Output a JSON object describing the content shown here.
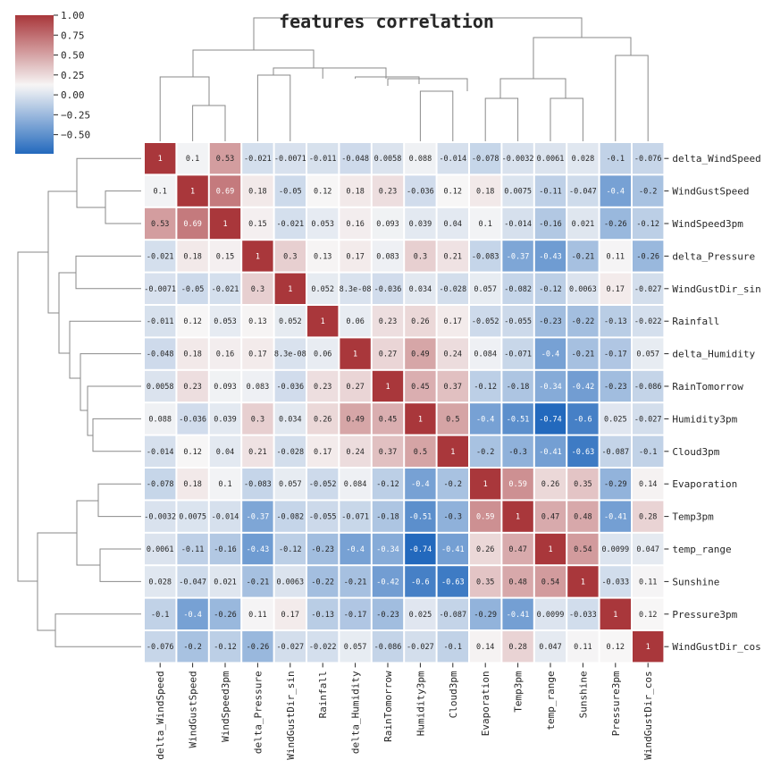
{
  "chart_data": {
    "type": "heatmap",
    "title": "features correlation",
    "row_labels": [
      "delta_WindSpeed",
      "WindGustSpeed",
      "WindSpeed3pm",
      "delta_Pressure",
      "WindGustDir_sin",
      "Rainfall",
      "delta_Humidity",
      "RainTomorrow",
      "Humidity3pm",
      "Cloud3pm",
      "Evaporation",
      "Temp3pm",
      "temp_range",
      "Sunshine",
      "Pressure3pm",
      "WindGustDir_cos"
    ],
    "col_labels": [
      "delta_WindSpeed",
      "WindGustSpeed",
      "WindSpeed3pm",
      "delta_Pressure",
      "WindGustDir_sin",
      "Rainfall",
      "delta_Humidity",
      "RainTomorrow",
      "Humidity3pm",
      "Cloud3pm",
      "Evaporation",
      "Temp3pm",
      "temp_range",
      "Sunshine",
      "Pressure3pm",
      "WindGustDir_cos"
    ],
    "values": [
      [
        1,
        0.1,
        0.53,
        -0.021,
        -0.0071,
        -0.011,
        -0.048,
        0.0058,
        0.088,
        -0.014,
        -0.078,
        -0.0032,
        0.0061,
        0.028,
        -0.1,
        -0.076
      ],
      [
        0.1,
        1,
        0.69,
        0.18,
        -0.05,
        0.12,
        0.18,
        0.23,
        -0.036,
        0.12,
        0.18,
        0.0075,
        -0.11,
        -0.047,
        -0.4,
        -0.2
      ],
      [
        0.53,
        0.69,
        1,
        0.15,
        -0.021,
        0.053,
        0.16,
        0.093,
        0.039,
        0.04,
        0.1,
        -0.014,
        -0.16,
        0.021,
        -0.26,
        -0.12
      ],
      [
        -0.021,
        0.18,
        0.15,
        1,
        0.3,
        0.13,
        0.17,
        0.083,
        0.3,
        0.21,
        -0.083,
        -0.37,
        -0.43,
        -0.21,
        0.11,
        -0.26
      ],
      [
        -0.0071,
        -0.05,
        -0.021,
        0.3,
        1,
        0.052,
        8.3e-08,
        -0.036,
        0.034,
        -0.028,
        0.057,
        -0.082,
        -0.12,
        0.0063,
        0.17,
        -0.027
      ],
      [
        -0.011,
        0.12,
        0.053,
        0.13,
        0.052,
        1,
        0.06,
        0.23,
        0.26,
        0.17,
        -0.052,
        -0.055,
        -0.23,
        -0.22,
        -0.13,
        -0.022
      ],
      [
        -0.048,
        0.18,
        0.16,
        0.17,
        8.3e-08,
        0.06,
        1,
        0.27,
        0.49,
        0.24,
        0.084,
        -0.071,
        -0.4,
        -0.21,
        -0.17,
        0.057
      ],
      [
        0.0058,
        0.23,
        0.093,
        0.083,
        -0.036,
        0.23,
        0.27,
        1,
        0.45,
        0.37,
        -0.12,
        -0.18,
        -0.34,
        -0.42,
        -0.23,
        -0.086
      ],
      [
        0.088,
        -0.036,
        0.039,
        0.3,
        0.034,
        0.26,
        0.49,
        0.45,
        1,
        0.5,
        -0.4,
        -0.51,
        -0.74,
        -0.6,
        0.025,
        -0.027
      ],
      [
        -0.014,
        0.12,
        0.04,
        0.21,
        -0.028,
        0.17,
        0.24,
        0.37,
        0.5,
        1,
        -0.2,
        -0.3,
        -0.41,
        -0.63,
        -0.087,
        -0.1
      ],
      [
        -0.078,
        0.18,
        0.1,
        -0.083,
        0.057,
        -0.052,
        0.084,
        -0.12,
        -0.4,
        -0.2,
        1,
        0.59,
        0.26,
        0.35,
        -0.29,
        0.14
      ],
      [
        -0.0032,
        0.0075,
        -0.014,
        -0.37,
        -0.082,
        -0.055,
        -0.071,
        -0.18,
        -0.51,
        -0.3,
        0.59,
        1,
        0.47,
        0.48,
        -0.41,
        0.28
      ],
      [
        0.0061,
        -0.11,
        -0.16,
        -0.43,
        -0.12,
        -0.23,
        -0.4,
        -0.34,
        -0.74,
        -0.41,
        0.26,
        0.47,
        1,
        0.54,
        0.0099,
        0.047
      ],
      [
        0.028,
        -0.047,
        0.021,
        -0.21,
        0.0063,
        -0.22,
        -0.21,
        -0.42,
        -0.6,
        -0.63,
        0.35,
        0.48,
        0.54,
        1,
        -0.033,
        0.11
      ],
      [
        -0.1,
        -0.4,
        -0.26,
        0.11,
        0.17,
        -0.13,
        -0.17,
        -0.23,
        0.025,
        -0.087,
        -0.29,
        -0.41,
        0.0099,
        -0.033,
        1,
        0.12
      ],
      [
        -0.076,
        -0.2,
        -0.12,
        -0.26,
        -0.027,
        -0.022,
        0.057,
        -0.086,
        -0.027,
        -0.1,
        0.14,
        0.28,
        0.047,
        0.11,
        0.12,
        1
      ]
    ],
    "value_labels": [
      [
        "1",
        "0.1",
        "0.53",
        "-0.021",
        "-0.0071",
        "-0.011",
        "-0.048",
        "0.0058",
        "0.088",
        "-0.014",
        "-0.078",
        "-0.0032",
        "0.0061",
        "0.028",
        "-0.1",
        "-0.076"
      ],
      [
        "0.1",
        "1",
        "0.69",
        "0.18",
        "-0.05",
        "0.12",
        "0.18",
        "0.23",
        "-0.036",
        "0.12",
        "0.18",
        "0.0075",
        "-0.11",
        "-0.047",
        "-0.4",
        "-0.2"
      ],
      [
        "0.53",
        "0.69",
        "1",
        "0.15",
        "-0.021",
        "0.053",
        "0.16",
        "0.093",
        "0.039",
        "0.04",
        "0.1",
        "-0.014",
        "-0.16",
        "0.021",
        "-0.26",
        "-0.12"
      ],
      [
        "-0.021",
        "0.18",
        "0.15",
        "1",
        "0.3",
        "0.13",
        "0.17",
        "0.083",
        "0.3",
        "0.21",
        "-0.083",
        "-0.37",
        "-0.43",
        "-0.21",
        "0.11",
        "-0.26"
      ],
      [
        "-0.0071",
        "-0.05",
        "-0.021",
        "0.3",
        "1",
        "0.052",
        "8.3e-08",
        "-0.036",
        "0.034",
        "-0.028",
        "0.057",
        "-0.082",
        "-0.12",
        "0.0063",
        "0.17",
        "-0.027"
      ],
      [
        "-0.011",
        "0.12",
        "0.053",
        "0.13",
        "0.052",
        "1",
        "0.06",
        "0.23",
        "0.26",
        "0.17",
        "-0.052",
        "-0.055",
        "-0.23",
        "-0.22",
        "-0.13",
        "-0.022"
      ],
      [
        "-0.048",
        "0.18",
        "0.16",
        "0.17",
        "8.3e-08",
        "0.06",
        "1",
        "0.27",
        "0.49",
        "0.24",
        "0.084",
        "-0.071",
        "-0.4",
        "-0.21",
        "-0.17",
        "0.057"
      ],
      [
        "0.0058",
        "0.23",
        "0.093",
        "0.083",
        "-0.036",
        "0.23",
        "0.27",
        "1",
        "0.45",
        "0.37",
        "-0.12",
        "-0.18",
        "-0.34",
        "-0.42",
        "-0.23",
        "-0.086"
      ],
      [
        "0.088",
        "-0.036",
        "0.039",
        "0.3",
        "0.034",
        "0.26",
        "0.49",
        "0.45",
        "1",
        "0.5",
        "-0.4",
        "-0.51",
        "-0.74",
        "-0.6",
        "0.025",
        "-0.027"
      ],
      [
        "-0.014",
        "0.12",
        "0.04",
        "0.21",
        "-0.028",
        "0.17",
        "0.24",
        "0.37",
        "0.5",
        "1",
        "-0.2",
        "-0.3",
        "-0.41",
        "-0.63",
        "-0.087",
        "-0.1"
      ],
      [
        "-0.078",
        "0.18",
        "0.1",
        "-0.083",
        "0.057",
        "-0.052",
        "0.084",
        "-0.12",
        "-0.4",
        "-0.2",
        "1",
        "0.59",
        "0.26",
        "0.35",
        "-0.29",
        "0.14"
      ],
      [
        "-0.0032",
        "0.0075",
        "-0.014",
        "-0.37",
        "-0.082",
        "-0.055",
        "-0.071",
        "-0.18",
        "-0.51",
        "-0.3",
        "0.59",
        "1",
        "0.47",
        "0.48",
        "-0.41",
        "0.28"
      ],
      [
        "0.0061",
        "-0.11",
        "-0.16",
        "-0.43",
        "-0.12",
        "-0.23",
        "-0.4",
        "-0.34",
        "-0.74",
        "-0.41",
        "0.26",
        "0.47",
        "1",
        "0.54",
        "0.0099",
        "0.047"
      ],
      [
        "0.028",
        "-0.047",
        "0.021",
        "-0.21",
        "0.0063",
        "-0.22",
        "-0.21",
        "-0.42",
        "-0.6",
        "-0.63",
        "0.35",
        "0.48",
        "0.54",
        "1",
        "-0.033",
        "0.11"
      ],
      [
        "-0.1",
        "-0.4",
        "-0.26",
        "0.11",
        "0.17",
        "-0.13",
        "-0.17",
        "-0.23",
        "0.025",
        "-0.087",
        "-0.29",
        "-0.41",
        "0.0099",
        "-0.033",
        "1",
        "0.12"
      ],
      [
        "-0.076",
        "-0.2",
        "-0.12",
        "-0.26",
        "-0.027",
        "-0.022",
        "0.057",
        "-0.086",
        "-0.027",
        "-0.1",
        "0.14",
        "0.28",
        "0.047",
        "0.11",
        "0.12",
        "1"
      ]
    ],
    "colorbar": {
      "range": [
        -0.74,
        1.0
      ],
      "ticks": [
        1.0,
        0.75,
        0.5,
        0.25,
        0.0,
        -0.25,
        -0.5
      ],
      "tick_labels": [
        "1.00",
        "0.75",
        "0.50",
        "0.25",
        "0.00",
        "−0.25",
        "−0.50"
      ],
      "placement": "top-left"
    },
    "colormap": {
      "name": "vlag",
      "low": "#2369bd",
      "mid": "#f7f6f6",
      "high": "#a9373b"
    },
    "dendrograms": {
      "rows": "left",
      "columns": "top"
    },
    "grid": false
  }
}
